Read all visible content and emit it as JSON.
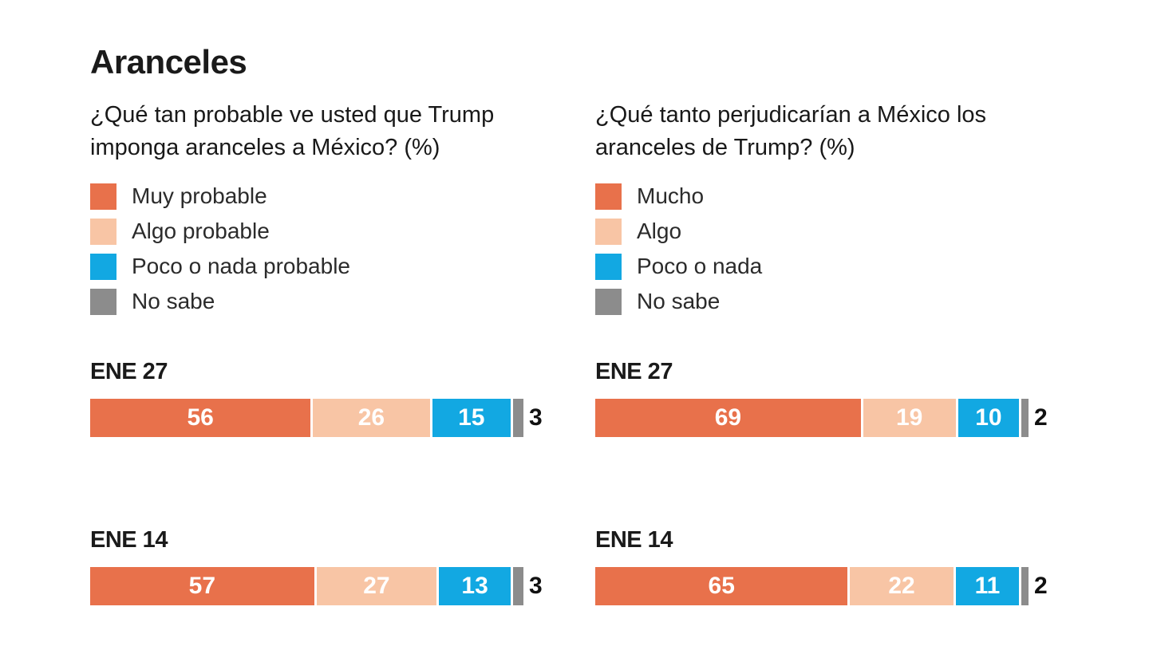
{
  "title": "Aranceles",
  "colors": {
    "muy": "#E8714B",
    "algo": "#F8C5A5",
    "poco": "#12A8E2",
    "nosabe": "#8C8C8C"
  },
  "chart_data": [
    {
      "type": "bar",
      "orientation": "horizontal",
      "stacked": true,
      "question": "¿Qué tan probable ve usted que Trump imponga aranceles a México? (%)",
      "unit": "%",
      "xlim": [
        0,
        100
      ],
      "legend": [
        "Muy probable",
        "Algo probable",
        "Poco o nada probable",
        "No sabe"
      ],
      "categories": [
        "ENE 27",
        "ENE 14"
      ],
      "rows": [
        {
          "date": "ENE 27",
          "values": [
            56,
            26,
            15,
            3
          ]
        },
        {
          "date": "ENE 14",
          "values": [
            57,
            27,
            13,
            3
          ]
        }
      ]
    },
    {
      "type": "bar",
      "orientation": "horizontal",
      "stacked": true,
      "question": "¿Qué tanto perjudicarían a México los aranceles de Trump? (%)",
      "unit": "%",
      "xlim": [
        0,
        100
      ],
      "legend": [
        "Mucho",
        "Algo",
        "Poco o nada",
        "No sabe"
      ],
      "categories": [
        "ENE 27",
        "ENE 14"
      ],
      "rows": [
        {
          "date": "ENE 27",
          "values": [
            69,
            19,
            10,
            2
          ]
        },
        {
          "date": "ENE 14",
          "values": [
            65,
            22,
            11,
            2
          ]
        }
      ]
    }
  ]
}
